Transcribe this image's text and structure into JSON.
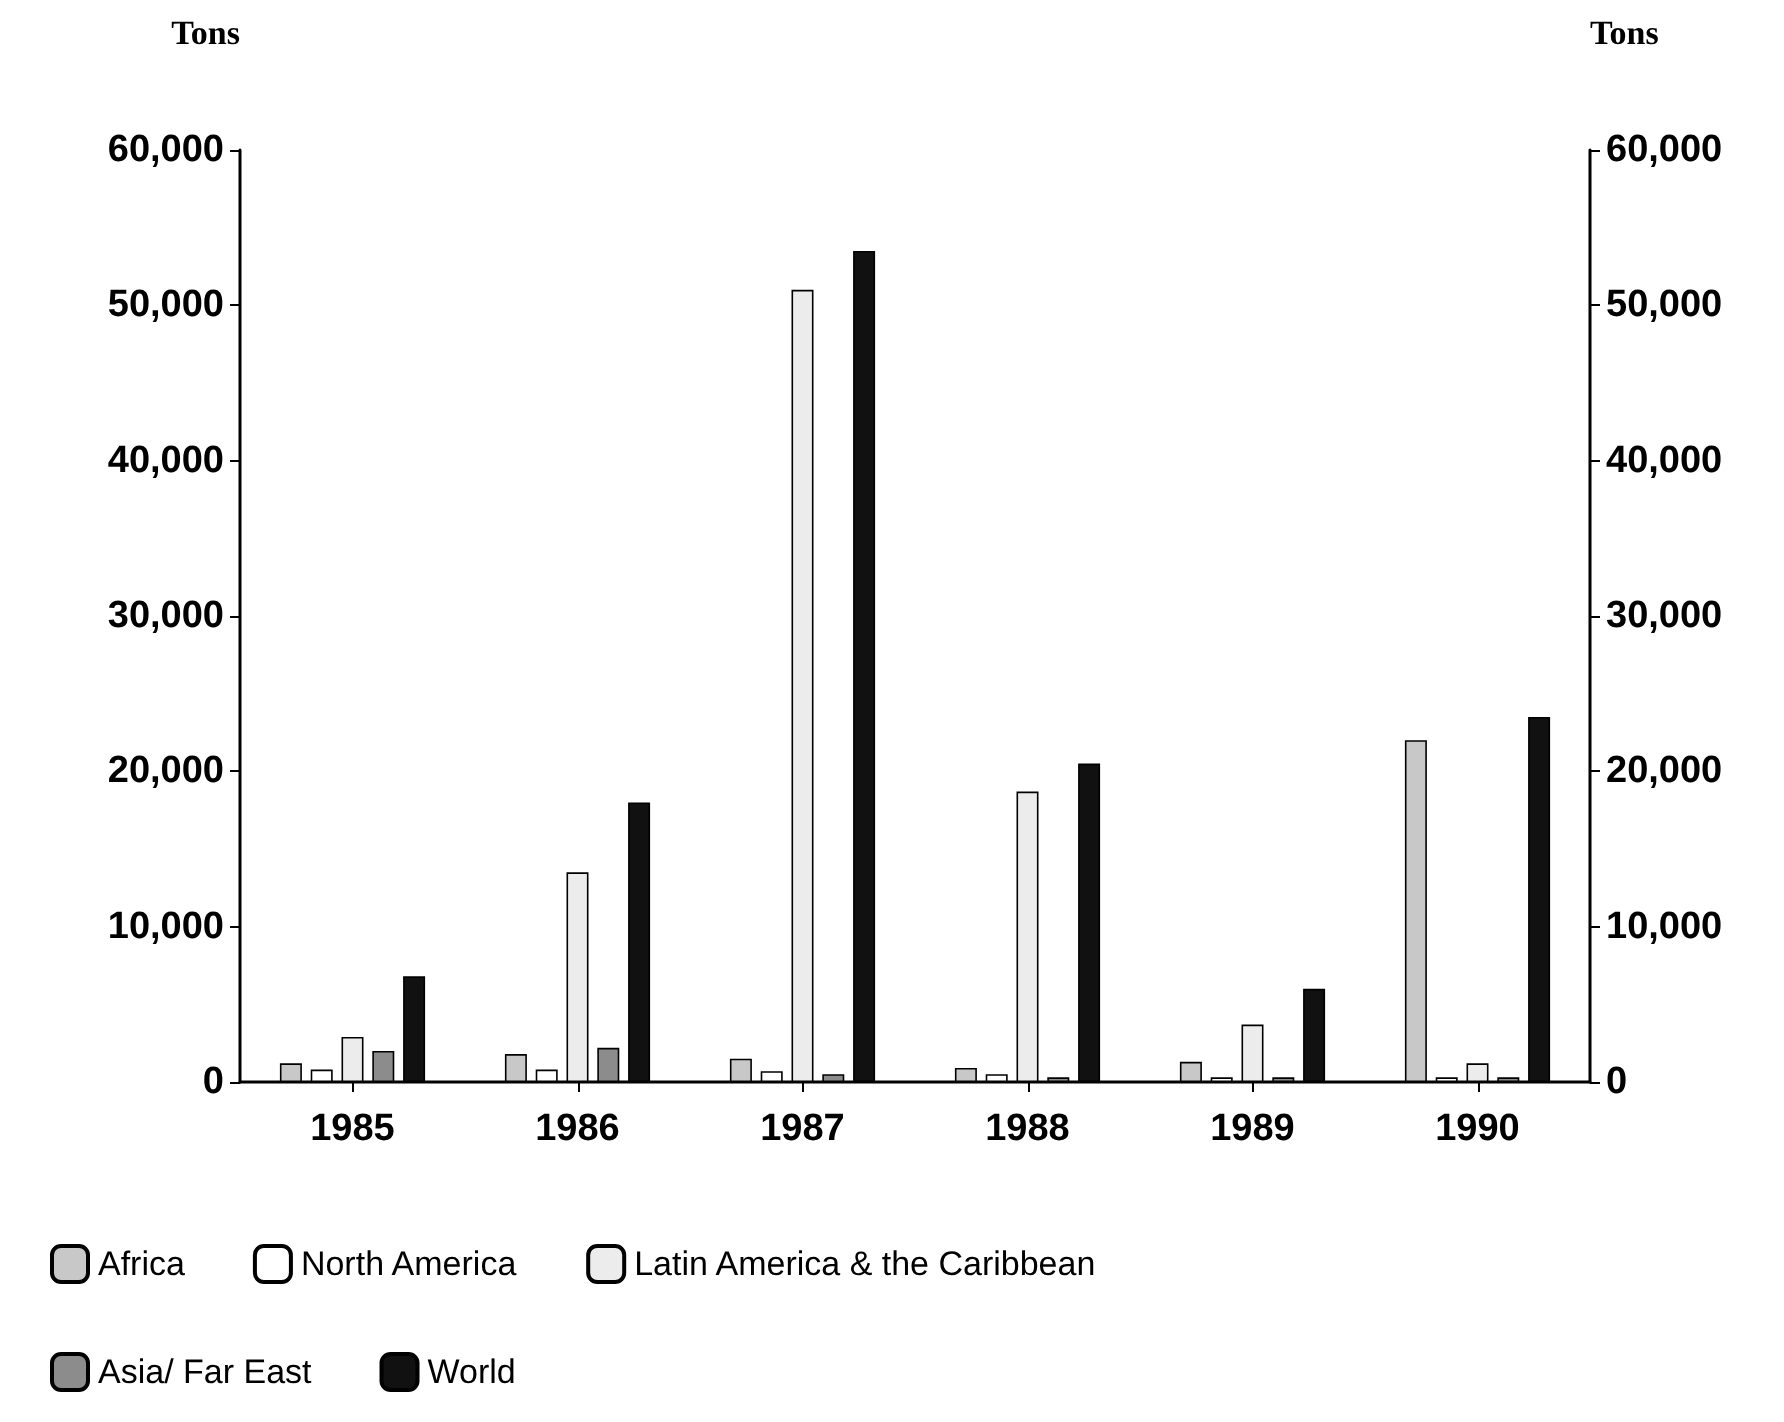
{
  "chart_data": {
    "type": "bar",
    "ylabel": "Tons",
    "y2label": "Tons",
    "categories": [
      "1985",
      "1986",
      "1987",
      "1988",
      "1989",
      "1990"
    ],
    "series": [
      {
        "name": "Africa",
        "color": "#c8c8c8",
        "values": [
          1200,
          1800,
          1500,
          900,
          1300,
          22000
        ]
      },
      {
        "name": "North America",
        "color": "#ffffff",
        "values": [
          800,
          800,
          700,
          500,
          300,
          300
        ]
      },
      {
        "name": "Latin America & the Caribbean",
        "color": "#ececec",
        "values": [
          2900,
          13500,
          51000,
          18700,
          3700,
          1200
        ]
      },
      {
        "name": "Asia/ Far East",
        "color": "#8c8c8c",
        "values": [
          2000,
          2200,
          500,
          300,
          300,
          300
        ]
      },
      {
        "name": "World",
        "color": "#111111",
        "values": [
          6800,
          18000,
          53500,
          20500,
          6000,
          23500
        ]
      }
    ],
    "ylim": [
      0,
      60000
    ],
    "yticks": [
      {
        "value": 0,
        "label": "0"
      },
      {
        "value": 10000,
        "label": "10,000"
      },
      {
        "value": 20000,
        "label": "20,000"
      },
      {
        "value": 30000,
        "label": "30,000"
      },
      {
        "value": 40000,
        "label": "40,000"
      },
      {
        "value": 50000,
        "label": "50,000"
      },
      {
        "value": 60000,
        "label": "60,000"
      }
    ],
    "y2lim": [
      0,
      60000
    ],
    "y2ticks": [
      {
        "value": 0,
        "label": "0"
      },
      {
        "value": 10000,
        "label": "10,000"
      },
      {
        "value": 20000,
        "label": "20,000"
      },
      {
        "value": 30000,
        "label": "30,000"
      },
      {
        "value": 40000,
        "label": "40,000"
      },
      {
        "value": 50000,
        "label": "50,000"
      },
      {
        "value": 60000,
        "label": "60,000"
      }
    ],
    "grid": false,
    "legend": "bottom"
  }
}
